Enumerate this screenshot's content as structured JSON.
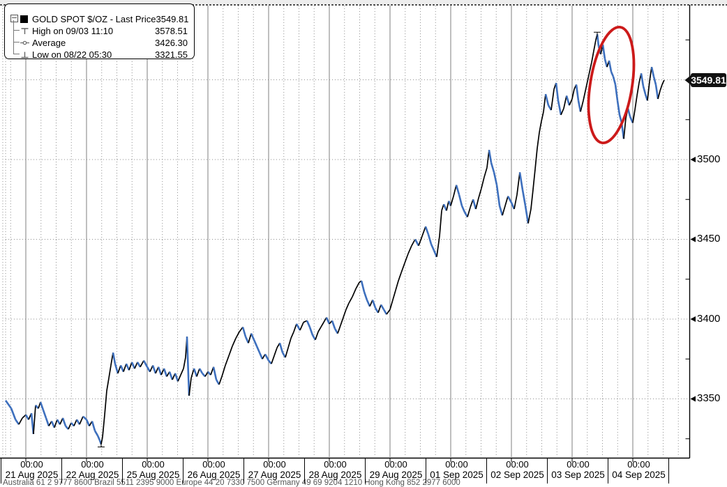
{
  "legend": {
    "rows": [
      {
        "label": "GOLD SPOT $/OZ - Last Price",
        "value": "3549.81",
        "marker": "series-square"
      },
      {
        "label": "High on 09/03 11:10",
        "value": "3578.51",
        "marker": "high-marker"
      },
      {
        "label": "Average",
        "value": "3426.30",
        "marker": "average-marker"
      },
      {
        "label": "Low on 08/22 05:30",
        "value": "3321.55",
        "marker": "low-marker"
      }
    ]
  },
  "y_axis": {
    "labels": [
      {
        "text": "3500"
      },
      {
        "text": "3450"
      },
      {
        "text": "3400"
      },
      {
        "text": "3350"
      }
    ],
    "last_price_tag": "3549.81"
  },
  "x_axis": {
    "sections": [
      {
        "time": "00:00",
        "date": "21 Aug 2025"
      },
      {
        "time": "00:00",
        "date": "22 Aug 2025"
      },
      {
        "time": "00:00",
        "date": "25 Aug 2025"
      },
      {
        "time": "00:00",
        "date": "26 Aug 2025"
      },
      {
        "time": "00:00",
        "date": "27 Aug 2025"
      },
      {
        "time": "00:00",
        "date": "28 Aug 2025"
      },
      {
        "time": "00:00",
        "date": "29 Aug 2025"
      },
      {
        "time": "00:00",
        "date": "01 Sep 2025"
      },
      {
        "time": "00:00",
        "date": "02 Sep 2025"
      },
      {
        "time": "00:00",
        "date": "03 Sep 2025"
      },
      {
        "time": "00:00",
        "date": "04 Sep 2025"
      }
    ]
  },
  "footer_text": "Australia 61 2 9777 8600 Brazil 5511 2395 9000 Europe 44 20 7330 7500 Germany 49 69 9204 1210 Hong Kong 852 2977 6000",
  "annotation": {
    "shape": "ellipse",
    "color": "#cc1a1a",
    "note": "red ellipse circling the selloff after the 09/03 high"
  },
  "chart_data": {
    "type": "line",
    "title": "GOLD SPOT $/OZ - Last Price",
    "last_price": 3549.81,
    "high": {
      "label": "High on 09/03 11:10",
      "value": 3578.51
    },
    "average": {
      "label": "Average",
      "value": 3426.3
    },
    "low": {
      "label": "Low on 08/22 05:30",
      "value": 3321.55
    },
    "x_categories": [
      "21 Aug 2025",
      "22 Aug 2025",
      "25 Aug 2025",
      "26 Aug 2025",
      "27 Aug 2025",
      "28 Aug 2025",
      "29 Aug 2025",
      "01 Sep 2025",
      "02 Sep 2025",
      "03 Sep 2025",
      "04 Sep 2025"
    ],
    "x_unit": "trading-day offset, t=0 at 21 Aug 2025 00:00",
    "y_ticks": [
      3350,
      3400,
      3450,
      3500
    ],
    "y_gridlines": [
      3350,
      3400,
      3450,
      3500,
      3550
    ],
    "y_minor_ticks": [
      3325,
      3375,
      3425,
      3475,
      3525,
      3575
    ],
    "y_range_visible": [
      3312,
      3596
    ],
    "grid": "dotted",
    "legend_position": "top-left",
    "colors": {
      "up": "#000000",
      "down": "#3d6fbd",
      "grid_solid": "#7f7f7f",
      "grid_dotted": "#8f8f8f",
      "axis": "#000000",
      "tag_bg": "#111111"
    },
    "high_point": [
      9.414,
      3578.5
    ],
    "low_point": [
      1.241,
      3321.6
    ],
    "points": [
      [
        -0.333,
        3349
      ],
      [
        -0.24,
        3344
      ],
      [
        -0.17,
        3337
      ],
      [
        -0.115,
        3334
      ],
      [
        -0.057,
        3338
      ],
      [
        0,
        3340
      ],
      [
        0.046,
        3337
      ],
      [
        0.092,
        3341
      ],
      [
        0.126,
        3328
      ],
      [
        0.161,
        3346
      ],
      [
        0.207,
        3344
      ],
      [
        0.241,
        3348
      ],
      [
        0.287,
        3343
      ],
      [
        0.333,
        3338
      ],
      [
        0.379,
        3333
      ],
      [
        0.425,
        3336
      ],
      [
        0.471,
        3332
      ],
      [
        0.517,
        3337
      ],
      [
        0.563,
        3334
      ],
      [
        0.609,
        3338
      ],
      [
        0.655,
        3333
      ],
      [
        0.701,
        3331
      ],
      [
        0.747,
        3335
      ],
      [
        0.793,
        3333
      ],
      [
        0.839,
        3337
      ],
      [
        0.885,
        3334
      ],
      [
        0.943,
        3339
      ],
      [
        1,
        3337
      ],
      [
        1.046,
        3333
      ],
      [
        1.092,
        3336
      ],
      [
        1.138,
        3330
      ],
      [
        1.184,
        3327
      ],
      [
        1.218,
        3324
      ],
      [
        1.241,
        3321.6
      ],
      [
        1.264,
        3326
      ],
      [
        1.299,
        3340
      ],
      [
        1.333,
        3355
      ],
      [
        1.368,
        3363
      ],
      [
        1.402,
        3371
      ],
      [
        1.437,
        3379
      ],
      [
        1.471,
        3372
      ],
      [
        1.517,
        3366
      ],
      [
        1.563,
        3371
      ],
      [
        1.609,
        3367
      ],
      [
        1.655,
        3372
      ],
      [
        1.701,
        3368
      ],
      [
        1.747,
        3373
      ],
      [
        1.793,
        3369
      ],
      [
        1.839,
        3373
      ],
      [
        1.885,
        3370
      ],
      [
        1.943,
        3374
      ],
      [
        2,
        3370
      ],
      [
        2.046,
        3367
      ],
      [
        2.092,
        3371
      ],
      [
        2.138,
        3366
      ],
      [
        2.184,
        3370
      ],
      [
        2.23,
        3365
      ],
      [
        2.276,
        3369
      ],
      [
        2.322,
        3364
      ],
      [
        2.368,
        3367
      ],
      [
        2.414,
        3362
      ],
      [
        2.46,
        3366
      ],
      [
        2.506,
        3361
      ],
      [
        2.552,
        3365
      ],
      [
        2.598,
        3369
      ],
      [
        2.632,
        3376
      ],
      [
        2.655,
        3389
      ],
      [
        2.69,
        3352
      ],
      [
        2.724,
        3363
      ],
      [
        2.77,
        3369
      ],
      [
        2.816,
        3364
      ],
      [
        2.862,
        3369
      ],
      [
        2.908,
        3366
      ],
      [
        2.954,
        3364
      ],
      [
        3,
        3367
      ],
      [
        3.046,
        3365
      ],
      [
        3.092,
        3370
      ],
      [
        3.138,
        3362
      ],
      [
        3.184,
        3359
      ],
      [
        3.23,
        3364
      ],
      [
        3.287,
        3371
      ],
      [
        3.345,
        3377
      ],
      [
        3.402,
        3383
      ],
      [
        3.46,
        3388
      ],
      [
        3.517,
        3392
      ],
      [
        3.575,
        3395
      ],
      [
        3.62,
        3389
      ],
      [
        3.667,
        3385
      ],
      [
        3.713,
        3391
      ],
      [
        3.759,
        3387
      ],
      [
        3.805,
        3383
      ],
      [
        3.851,
        3379
      ],
      [
        3.897,
        3375
      ],
      [
        3.943,
        3378
      ],
      [
        4,
        3374
      ],
      [
        4.046,
        3372
      ],
      [
        4.092,
        3377
      ],
      [
        4.138,
        3382
      ],
      [
        4.184,
        3385
      ],
      [
        4.23,
        3379
      ],
      [
        4.276,
        3376
      ],
      [
        4.322,
        3382
      ],
      [
        4.368,
        3388
      ],
      [
        4.414,
        3392
      ],
      [
        4.46,
        3397
      ],
      [
        4.517,
        3393
      ],
      [
        4.575,
        3398
      ],
      [
        4.632,
        3399
      ],
      [
        4.678,
        3395
      ],
      [
        4.724,
        3390
      ],
      [
        4.77,
        3387
      ],
      [
        4.816,
        3392
      ],
      [
        4.862,
        3395
      ],
      [
        4.908,
        3398
      ],
      [
        4.954,
        3401
      ],
      [
        5,
        3397
      ],
      [
        5.046,
        3399
      ],
      [
        5.092,
        3394
      ],
      [
        5.138,
        3391
      ],
      [
        5.184,
        3396
      ],
      [
        5.23,
        3401
      ],
      [
        5.276,
        3406
      ],
      [
        5.322,
        3410
      ],
      [
        5.38,
        3414
      ],
      [
        5.437,
        3419
      ],
      [
        5.494,
        3423
      ],
      [
        5.529,
        3424
      ],
      [
        5.575,
        3417
      ],
      [
        5.62,
        3412
      ],
      [
        5.667,
        3408
      ],
      [
        5.713,
        3412
      ],
      [
        5.759,
        3407
      ],
      [
        5.805,
        3404
      ],
      [
        5.851,
        3409
      ],
      [
        5.897,
        3406
      ],
      [
        5.943,
        3403
      ],
      [
        6,
        3406
      ],
      [
        6.046,
        3412
      ],
      [
        6.092,
        3418
      ],
      [
        6.138,
        3424
      ],
      [
        6.184,
        3429
      ],
      [
        6.241,
        3435
      ],
      [
        6.299,
        3441
      ],
      [
        6.356,
        3446
      ],
      [
        6.414,
        3450
      ],
      [
        6.471,
        3446
      ],
      [
        6.529,
        3452
      ],
      [
        6.586,
        3458
      ],
      [
        6.632,
        3453
      ],
      [
        6.678,
        3447
      ],
      [
        6.724,
        3443
      ],
      [
        6.77,
        3439
      ],
      [
        6.816,
        3452
      ],
      [
        6.851,
        3468
      ],
      [
        6.885,
        3472
      ],
      [
        6.931,
        3468
      ],
      [
        6.966,
        3474
      ],
      [
        7,
        3471
      ],
      [
        7.046,
        3477
      ],
      [
        7.092,
        3484
      ],
      [
        7.138,
        3478
      ],
      [
        7.184,
        3471
      ],
      [
        7.23,
        3467
      ],
      [
        7.276,
        3464
      ],
      [
        7.322,
        3470
      ],
      [
        7.368,
        3475
      ],
      [
        7.414,
        3469
      ],
      [
        7.46,
        3476
      ],
      [
        7.506,
        3482
      ],
      [
        7.552,
        3489
      ],
      [
        7.598,
        3495
      ],
      [
        7.632,
        3506
      ],
      [
        7.667,
        3498
      ],
      [
        7.713,
        3492
      ],
      [
        7.759,
        3484
      ],
      [
        7.805,
        3471
      ],
      [
        7.851,
        3465
      ],
      [
        7.897,
        3471
      ],
      [
        7.943,
        3477
      ],
      [
        8,
        3473
      ],
      [
        8.046,
        3469
      ],
      [
        8.092,
        3478
      ],
      [
        8.138,
        3492
      ],
      [
        8.184,
        3481
      ],
      [
        8.23,
        3471
      ],
      [
        8.276,
        3460
      ],
      [
        8.322,
        3469
      ],
      [
        8.356,
        3481
      ],
      [
        8.391,
        3494
      ],
      [
        8.425,
        3507
      ],
      [
        8.46,
        3517
      ],
      [
        8.494,
        3524
      ],
      [
        8.529,
        3530
      ],
      [
        8.563,
        3541
      ],
      [
        8.609,
        3534
      ],
      [
        8.655,
        3531
      ],
      [
        8.701,
        3544
      ],
      [
        8.736,
        3548
      ],
      [
        8.77,
        3537
      ],
      [
        8.816,
        3528
      ],
      [
        8.862,
        3532
      ],
      [
        8.908,
        3540
      ],
      [
        8.954,
        3534
      ],
      [
        9,
        3538
      ],
      [
        9.034,
        3544
      ],
      [
        9.069,
        3547
      ],
      [
        9.103,
        3537
      ],
      [
        9.138,
        3530
      ],
      [
        9.184,
        3537
      ],
      [
        9.23,
        3545
      ],
      [
        9.276,
        3553
      ],
      [
        9.322,
        3561
      ],
      [
        9.356,
        3568
      ],
      [
        9.391,
        3575
      ],
      [
        9.414,
        3578.5
      ],
      [
        9.437,
        3571
      ],
      [
        9.471,
        3566
      ],
      [
        9.506,
        3572
      ],
      [
        9.54,
        3563
      ],
      [
        9.575,
        3558
      ],
      [
        9.609,
        3562
      ],
      [
        9.644,
        3555
      ],
      [
        9.678,
        3552
      ],
      [
        9.713,
        3547
      ],
      [
        9.747,
        3537
      ],
      [
        9.782,
        3528
      ],
      [
        9.816,
        3523
      ],
      [
        9.851,
        3513
      ],
      [
        9.885,
        3526
      ],
      [
        9.92,
        3532
      ],
      [
        9.954,
        3527
      ],
      [
        10,
        3523
      ],
      [
        10.034,
        3531
      ],
      [
        10.069,
        3540
      ],
      [
        10.103,
        3548
      ],
      [
        10.138,
        3554
      ],
      [
        10.172,
        3546
      ],
      [
        10.207,
        3541
      ],
      [
        10.241,
        3537
      ],
      [
        10.276,
        3549
      ],
      [
        10.31,
        3558
      ],
      [
        10.345,
        3552
      ],
      [
        10.379,
        3547
      ],
      [
        10.414,
        3538
      ],
      [
        10.448,
        3543
      ],
      [
        10.483,
        3547
      ],
      [
        10.517,
        3549.8
      ]
    ]
  }
}
